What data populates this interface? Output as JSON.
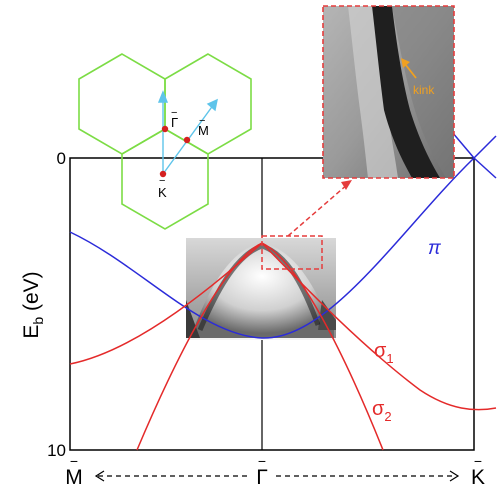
{
  "axis": {
    "y_label": "E",
    "y_label_sub": "b",
    "y_label_unit": " (eV)",
    "y_ticks": [
      "0",
      "10"
    ],
    "x_points": [
      {
        "bar": "−",
        "letter": "M"
      },
      {
        "bar": "−",
        "letter": "Γ"
      },
      {
        "bar": "−",
        "letter": "K"
      }
    ]
  },
  "bands": {
    "pi": "π",
    "sigma1": {
      "base": "σ",
      "sub": "1"
    },
    "sigma2": {
      "base": "σ",
      "sub": "2"
    }
  },
  "brillouin_zone": {
    "gamma_label": "Γ",
    "m_label": "M",
    "k_label": "K",
    "bar": "−"
  },
  "inset": {
    "annotation": "kink"
  },
  "colors": {
    "pi_band": "#2b2bd9",
    "sigma_band": "#e42a2a",
    "hexagon": "#7cdc45",
    "bz_arrow": "#5ec4ea",
    "kink_label": "#f0a020",
    "highlight_box": "#e53c3c",
    "frame": "#000000"
  }
}
